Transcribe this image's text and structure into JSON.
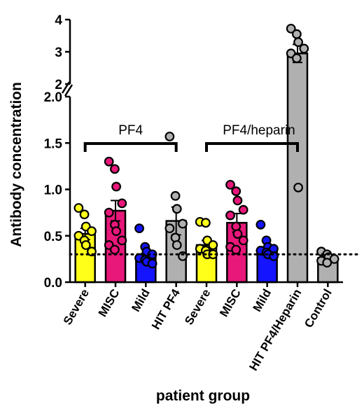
{
  "chart_data": {
    "type": "bar",
    "title": "",
    "xlabel": "patient group",
    "ylabel": "Antibody concentration",
    "lower_axis": {
      "ylim": [
        0.0,
        2.0
      ],
      "ticks": [
        "0.0",
        "0.5",
        "1.0",
        "1.5",
        "2.0"
      ]
    },
    "upper_axis": {
      "ylim": [
        2,
        4
      ],
      "ticks": [
        "2",
        "3",
        "4"
      ]
    },
    "axis_break": "between 2.0 and 2",
    "cutoff_line": 0.3,
    "groups": [
      {
        "text": "PF4",
        "span": [
          0,
          3
        ]
      },
      {
        "text": "PF4/heparin",
        "span": [
          4,
          7
        ]
      }
    ],
    "categories": [
      "Severe",
      "MISC",
      "Mild",
      "HIT PF4",
      "Severe",
      "MISC",
      "Mild",
      "HIT PF4/Heparin",
      "Control"
    ],
    "colors": [
      "#ffff1a",
      "#e8177a",
      "#1414ff",
      "#b0b0b0",
      "#ffff1a",
      "#e8177a",
      "#1414ff",
      "#b0b0b0",
      "#b0b0b0"
    ],
    "values": [
      0.52,
      0.77,
      0.27,
      0.66,
      0.4,
      0.64,
      0.35,
      2.95,
      0.26
    ],
    "errors": [
      0.06,
      0.11,
      0.04,
      0.15,
      0.05,
      0.1,
      0.03,
      0.28,
      0.03
    ],
    "points": [
      [
        0.8,
        0.73,
        0.6,
        0.55,
        0.5,
        0.45,
        0.4,
        0.33
      ],
      [
        1.3,
        1.22,
        1.03,
        0.85,
        0.75,
        0.62,
        0.55,
        0.45,
        0.4,
        0.35
      ],
      [
        0.58,
        0.38,
        0.33,
        0.3,
        0.26,
        0.24,
        0.22,
        0.2
      ],
      [
        1.57,
        0.93,
        0.79,
        0.63,
        0.58,
        0.48,
        0.4,
        0.28
      ],
      [
        0.65,
        0.64,
        0.45,
        0.4,
        0.36,
        0.34,
        0.3,
        0.3
      ],
      [
        1.05,
        0.98,
        0.88,
        0.78,
        0.72,
        0.6,
        0.52,
        0.45,
        0.38,
        0.35
      ],
      [
        0.62,
        0.45,
        0.38,
        0.36,
        0.34,
        0.32,
        0.3,
        0.28
      ],
      [
        3.72,
        3.55,
        3.3,
        3.1,
        2.95,
        2.8,
        1.02
      ],
      [
        0.33,
        0.3,
        0.27,
        0.25,
        0.23,
        0.21
      ]
    ]
  }
}
